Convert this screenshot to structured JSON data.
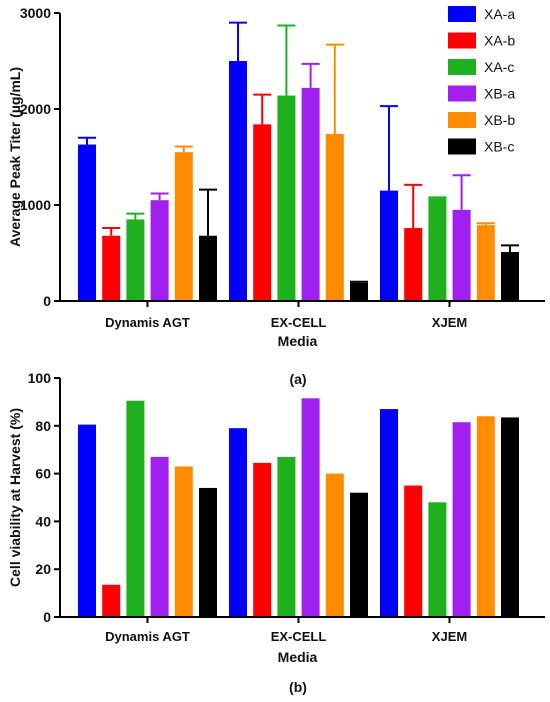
{
  "chart_data": [
    {
      "type": "bar",
      "panel_label": "(a)",
      "categories": [
        "Dynamis AGT",
        "EX-CELL",
        "XJEM"
      ],
      "xlabel": "Media",
      "ylabel": "Average Peak Titer (µg/mL)",
      "ylim": [
        0,
        3000
      ],
      "yticks": [
        "0",
        "1000",
        "2000",
        "3000"
      ],
      "error_bars": true,
      "legend_position": "top-right",
      "series": [
        {
          "name": "XA-a",
          "color": "#0000ff",
          "values": [
            1630,
            2500,
            1150
          ],
          "errors": [
            70,
            400,
            880
          ]
        },
        {
          "name": "XA-b",
          "color": "#ff0000",
          "values": [
            680,
            1840,
            760
          ],
          "errors": [
            80,
            310,
            450
          ]
        },
        {
          "name": "XA-c",
          "color": "#1fb01f",
          "values": [
            850,
            2140,
            1070
          ],
          "errors": [
            60,
            730,
            10
          ]
        },
        {
          "name": "XB-a",
          "color": "#a020f0",
          "values": [
            1050,
            2220,
            950
          ],
          "errors": [
            70,
            250,
            360
          ]
        },
        {
          "name": "XB-b",
          "color": "#ff8c00",
          "values": [
            1550,
            1740,
            790
          ],
          "errors": [
            60,
            930,
            20
          ]
        },
        {
          "name": "XB-c",
          "color": "#000000",
          "values": [
            680,
            190,
            510
          ],
          "errors": [
            480,
            10,
            70
          ]
        }
      ]
    },
    {
      "type": "bar",
      "panel_label": "(b)",
      "categories": [
        "Dynamis AGT",
        "EX-CELL",
        "XJEM"
      ],
      "xlabel": "Media",
      "ylabel": "Cell viability at Harvest (%)",
      "ylim": [
        0,
        100
      ],
      "yticks": [
        "0",
        "20",
        "40",
        "60",
        "80",
        "100"
      ],
      "error_bars": false,
      "legend_position": "none",
      "series": [
        {
          "name": "XA-a",
          "color": "#0000ff",
          "values": [
            80.5,
            79,
            87
          ]
        },
        {
          "name": "XA-b",
          "color": "#ff0000",
          "values": [
            13.5,
            64.5,
            55
          ]
        },
        {
          "name": "XA-c",
          "color": "#1fb01f",
          "values": [
            90.5,
            67,
            48
          ]
        },
        {
          "name": "XB-a",
          "color": "#a020f0",
          "values": [
            67,
            91.5,
            81.5
          ]
        },
        {
          "name": "XB-b",
          "color": "#ff8c00",
          "values": [
            63,
            60,
            84
          ]
        },
        {
          "name": "XB-c",
          "color": "#000000",
          "values": [
            54,
            52,
            83.5
          ]
        }
      ]
    }
  ]
}
